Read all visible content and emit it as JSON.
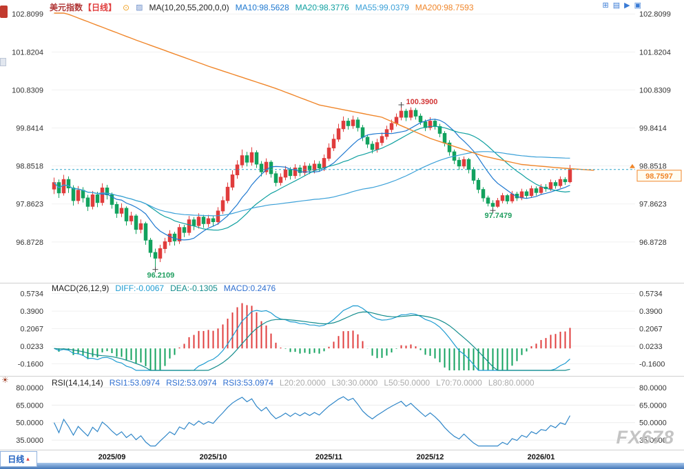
{
  "header": {
    "symbol": "美元指数",
    "period": "【日线】",
    "ma_settings": "MA(10,20,55,200,0,0)",
    "ma10": "MA10:98.5628",
    "ma20": "MA20:98.3776",
    "ma55": "MA55:99.0379",
    "ma200": "MA200:98.7593"
  },
  "macd_header": {
    "title": "MACD(26,12,9)",
    "diff": "DIFF:-0.0067",
    "dea": "DEA:-0.1305",
    "macd": "MACD:0.2476"
  },
  "rsi_header": {
    "title": "RSI(14,14,14)",
    "rsi1": "RSI1:53.0974",
    "rsi2": "RSI2:53.0974",
    "rsi3": "RSI3:53.0974",
    "l20": "L20:20.0000",
    "l30": "L30:30.0000",
    "l50": "L50:50.0000",
    "l70": "L70:70.0000",
    "l80": "L80:80.0000"
  },
  "bottom": {
    "period_label": "日线",
    "period_arrow": "▴"
  },
  "watermark": "FX678",
  "top_icons": {
    "grid": "⊞",
    "columns": "▤",
    "play": "▶",
    "solid": "▣"
  },
  "colors": {
    "up": "#e03c3c",
    "down": "#12a25e",
    "ma10": "#1e78d0",
    "ma20": "#0fa0a0",
    "ma55": "#3aa0d8",
    "ma200": "#f0862a",
    "diff_line": "#1d9bd1",
    "dea_line": "#128c8c",
    "rsi_line": "#2f86c8",
    "last_price_line": "#2aa3c8",
    "annotation_up": "#d23535",
    "annotation_down": "#1f9e5f",
    "accent_blue": "#3a7bd5"
  },
  "chart_data": {
    "type": "candlestick",
    "title": "美元指数 日线",
    "panels": [
      "price",
      "macd",
      "rsi"
    ],
    "y_ticks_price": [
      102.8099,
      101.8204,
      100.8309,
      99.8414,
      98.8518,
      97.8623,
      96.8728
    ],
    "y_ticks_macd": [
      0.5734,
      0.39,
      0.2067,
      0.0233,
      -0.16
    ],
    "y_ticks_rsi": [
      80.0,
      65.0,
      50.0,
      35.0
    ],
    "x_ticks": [
      {
        "index": 12,
        "label": "2025/09"
      },
      {
        "index": 33,
        "label": "2025/10"
      },
      {
        "index": 57,
        "label": "2025/11"
      },
      {
        "index": 78,
        "label": "2025/12"
      },
      {
        "index": 101,
        "label": "2026/01"
      }
    ],
    "right_padding_slots": 13,
    "last_price": 98.7597,
    "last_price_label": "98.7597",
    "annotations": {
      "high": {
        "index": 72,
        "price": 100.39,
        "label": "100.3900"
      },
      "low1": {
        "index": 21,
        "price": 96.2109,
        "label": "96.2109"
      },
      "low2": {
        "index": 91,
        "price": 97.7479,
        "label": "97.7479"
      }
    },
    "ma200_points": [
      [
        0,
        102.95
      ],
      [
        3,
        102.8
      ],
      [
        17,
        102.13
      ],
      [
        32,
        101.45
      ],
      [
        46,
        100.87
      ],
      [
        55,
        100.44
      ],
      [
        68,
        100.12
      ],
      [
        78,
        99.57
      ],
      [
        89,
        99.11
      ],
      [
        97,
        98.89
      ],
      [
        105,
        98.8
      ],
      [
        112,
        98.74
      ]
    ],
    "candles": [
      [
        98.25,
        98.55,
        98.12,
        98.42
      ],
      [
        98.42,
        98.5,
        98.02,
        98.15
      ],
      [
        98.15,
        98.62,
        98.08,
        98.5
      ],
      [
        98.5,
        98.58,
        98.15,
        98.28
      ],
      [
        98.28,
        98.35,
        97.82,
        97.95
      ],
      [
        97.95,
        98.33,
        97.86,
        98.22
      ],
      [
        98.22,
        98.3,
        97.9,
        98.02
      ],
      [
        98.02,
        98.1,
        97.68,
        97.8
      ],
      [
        97.8,
        98.2,
        97.72,
        98.1
      ],
      [
        98.1,
        98.18,
        97.78,
        97.9
      ],
      [
        97.9,
        98.4,
        97.82,
        98.28
      ],
      [
        98.28,
        98.36,
        97.98,
        98.1
      ],
      [
        98.1,
        98.16,
        97.74,
        97.85
      ],
      [
        97.85,
        97.92,
        97.5,
        97.62
      ],
      [
        97.62,
        97.88,
        97.52,
        97.75
      ],
      [
        97.75,
        97.8,
        97.3,
        97.42
      ],
      [
        97.42,
        97.66,
        97.32,
        97.55
      ],
      [
        97.55,
        97.6,
        97.08,
        97.2
      ],
      [
        97.2,
        97.46,
        97.1,
        97.35
      ],
      [
        97.35,
        97.4,
        96.8,
        96.92
      ],
      [
        96.92,
        96.98,
        96.48,
        96.6
      ],
      [
        96.6,
        96.7,
        96.2109,
        96.45
      ],
      [
        96.45,
        96.8,
        96.35,
        96.7
      ],
      [
        96.7,
        96.98,
        96.58,
        96.88
      ],
      [
        96.88,
        97.18,
        96.78,
        97.08
      ],
      [
        97.08,
        97.14,
        96.78,
        96.9
      ],
      [
        96.9,
        97.34,
        96.82,
        97.25
      ],
      [
        97.25,
        97.32,
        97.0,
        97.12
      ],
      [
        97.12,
        97.55,
        97.04,
        97.45
      ],
      [
        97.45,
        97.52,
        97.18,
        97.3
      ],
      [
        97.3,
        97.62,
        97.22,
        97.52
      ],
      [
        97.52,
        97.58,
        97.24,
        97.35
      ],
      [
        97.35,
        97.58,
        97.26,
        97.48
      ],
      [
        97.48,
        97.56,
        97.28,
        97.4
      ],
      [
        97.4,
        97.78,
        97.32,
        97.68
      ],
      [
        97.68,
        98.06,
        97.6,
        97.95
      ],
      [
        97.95,
        98.42,
        97.88,
        98.3
      ],
      [
        98.3,
        98.74,
        98.22,
        98.62
      ],
      [
        98.62,
        99.0,
        98.52,
        98.88
      ],
      [
        98.88,
        99.28,
        98.8,
        99.12
      ],
      [
        99.12,
        99.22,
        98.84,
        98.95
      ],
      [
        98.95,
        99.34,
        98.86,
        99.2
      ],
      [
        99.2,
        99.26,
        98.8,
        98.9
      ],
      [
        98.9,
        98.98,
        98.58,
        98.7
      ],
      [
        98.7,
        99.05,
        98.62,
        98.95
      ],
      [
        98.95,
        99.0,
        98.55,
        98.65
      ],
      [
        98.65,
        98.72,
        98.32,
        98.42
      ],
      [
        98.42,
        98.66,
        98.34,
        98.56
      ],
      [
        98.56,
        98.85,
        98.48,
        98.75
      ],
      [
        98.75,
        98.82,
        98.5,
        98.6
      ],
      [
        98.6,
        98.9,
        98.52,
        98.8
      ],
      [
        98.8,
        98.88,
        98.58,
        98.68
      ],
      [
        98.68,
        98.95,
        98.6,
        98.85
      ],
      [
        98.85,
        98.92,
        98.64,
        98.74
      ],
      [
        98.74,
        99.0,
        98.66,
        98.9
      ],
      [
        98.9,
        98.98,
        98.7,
        98.8
      ],
      [
        98.8,
        99.15,
        98.72,
        99.05
      ],
      [
        99.05,
        99.44,
        98.98,
        99.32
      ],
      [
        99.32,
        99.68,
        99.24,
        99.55
      ],
      [
        99.55,
        99.95,
        99.48,
        99.82
      ],
      [
        99.82,
        100.14,
        99.74,
        100.02
      ],
      [
        100.02,
        100.1,
        99.8,
        99.9
      ],
      [
        99.9,
        100.16,
        99.82,
        100.05
      ],
      [
        100.05,
        100.12,
        99.75,
        99.85
      ],
      [
        99.85,
        99.92,
        99.5,
        99.6
      ],
      [
        99.6,
        99.66,
        99.32,
        99.42
      ],
      [
        99.42,
        99.5,
        99.18,
        99.28
      ],
      [
        99.28,
        99.56,
        99.2,
        99.46
      ],
      [
        99.46,
        99.72,
        99.38,
        99.62
      ],
      [
        99.62,
        99.9,
        99.54,
        99.8
      ],
      [
        99.8,
        100.06,
        99.72,
        99.96
      ],
      [
        99.96,
        100.22,
        99.88,
        100.12
      ],
      [
        100.12,
        100.39,
        100.04,
        100.28
      ],
      [
        100.28,
        100.34,
        100.02,
        100.12
      ],
      [
        100.12,
        100.38,
        100.04,
        100.3
      ],
      [
        100.3,
        100.36,
        100.06,
        100.15
      ],
      [
        100.15,
        100.22,
        99.92,
        100.0
      ],
      [
        100.0,
        100.06,
        99.76,
        99.85
      ],
      [
        99.85,
        100.12,
        99.78,
        100.02
      ],
      [
        100.02,
        100.08,
        99.8,
        99.88
      ],
      [
        99.88,
        99.95,
        99.6,
        99.7
      ],
      [
        99.7,
        99.76,
        99.36,
        99.45
      ],
      [
        99.45,
        99.52,
        99.12,
        99.22
      ],
      [
        99.22,
        99.28,
        98.9,
        99.0
      ],
      [
        99.0,
        99.08,
        98.75,
        98.85
      ],
      [
        98.85,
        99.1,
        98.78,
        99.02
      ],
      [
        99.02,
        99.06,
        98.66,
        98.76
      ],
      [
        98.76,
        98.82,
        98.38,
        98.48
      ],
      [
        98.48,
        98.54,
        98.14,
        98.24
      ],
      [
        98.24,
        98.3,
        97.92,
        98.02
      ],
      [
        98.02,
        98.08,
        97.8,
        97.88
      ],
      [
        97.88,
        97.96,
        97.7479,
        97.8
      ],
      [
        97.8,
        98.02,
        97.76,
        97.95
      ],
      [
        97.95,
        98.15,
        97.88,
        98.08
      ],
      [
        98.08,
        98.12,
        97.86,
        97.94
      ],
      [
        97.94,
        98.2,
        97.88,
        98.12
      ],
      [
        98.12,
        98.18,
        97.94,
        98.02
      ],
      [
        98.02,
        98.26,
        97.96,
        98.18
      ],
      [
        98.18,
        98.24,
        98.0,
        98.08
      ],
      [
        98.08,
        98.34,
        98.02,
        98.26
      ],
      [
        98.26,
        98.32,
        98.08,
        98.16
      ],
      [
        98.16,
        98.38,
        98.1,
        98.3
      ],
      [
        98.3,
        98.38,
        98.18,
        98.26
      ],
      [
        98.26,
        98.5,
        98.2,
        98.42
      ],
      [
        98.42,
        98.48,
        98.26,
        98.34
      ],
      [
        98.34,
        98.58,
        98.28,
        98.5
      ],
      [
        98.5,
        98.56,
        98.36,
        98.44
      ],
      [
        98.44,
        98.88,
        98.4,
        98.7597
      ]
    ]
  }
}
